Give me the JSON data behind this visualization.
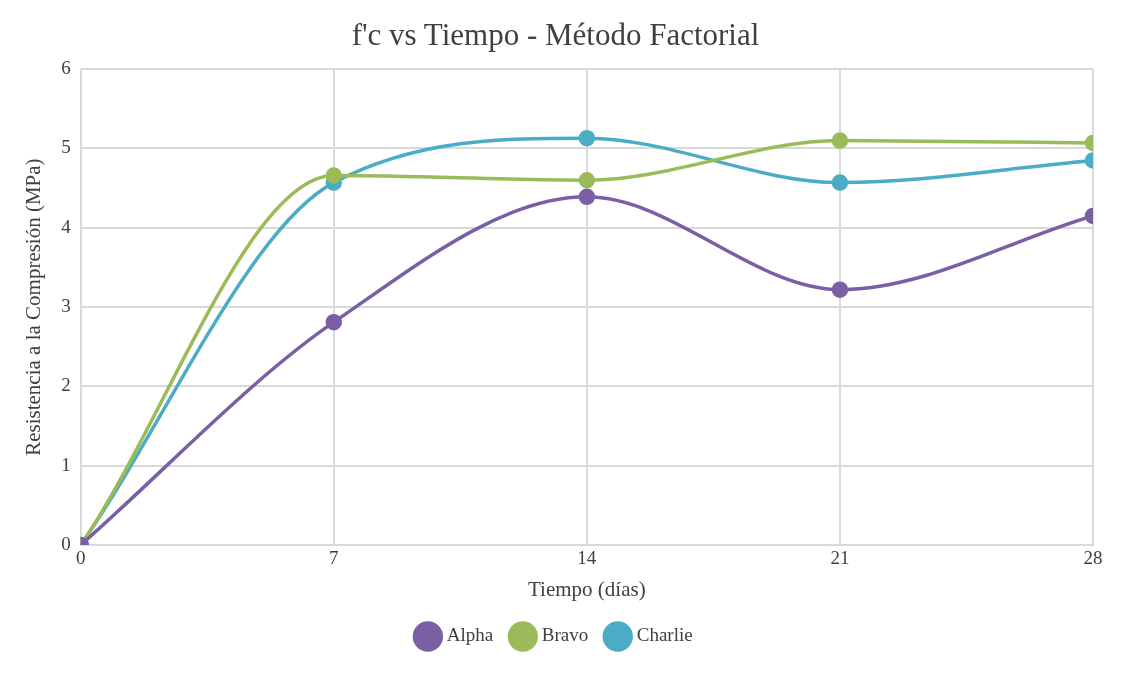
{
  "chart_data": {
    "type": "line",
    "title": "f'c vs Tiempo - Método Factorial",
    "xlabel": "Tiempo (días)",
    "ylabel": "Resistencia a la Compresión (MPa)",
    "x": [
      0,
      7,
      14,
      21,
      28
    ],
    "xlim": [
      0,
      28
    ],
    "xticks": [
      0,
      7,
      14,
      21,
      28
    ],
    "ylim": [
      0,
      6
    ],
    "yticks": [
      0,
      1,
      2,
      3,
      4,
      5,
      6
    ],
    "series": [
      {
        "name": "Alpha",
        "color": "#7b5fa5",
        "values": [
          0,
          2.81,
          4.39,
          3.22,
          4.15
        ]
      },
      {
        "name": "Bravo",
        "color": "#9bbb59",
        "values": [
          0,
          4.66,
          4.6,
          5.1,
          5.07
        ]
      },
      {
        "name": "Charlie",
        "color": "#4bacc6",
        "values": [
          0,
          4.57,
          5.13,
          4.57,
          4.85
        ]
      }
    ],
    "grid": true,
    "legend": "bottom",
    "marker": "circle",
    "line_style": "solid"
  }
}
